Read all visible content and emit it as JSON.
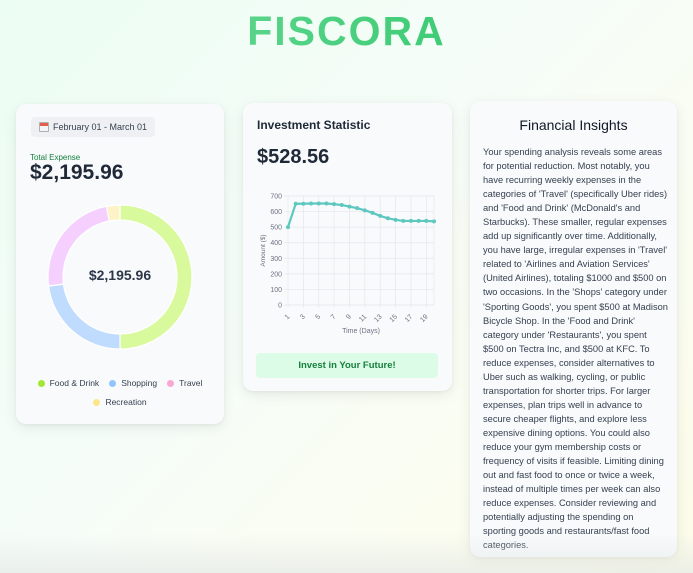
{
  "app": {
    "title": "FISCORA"
  },
  "expense_card": {
    "date_icon": "calendar-icon",
    "date_range": "February 01 - March 01",
    "total_label": "Total Expense",
    "total_value": "$2,195.96",
    "donut_center": "$2,195.96",
    "legend": [
      {
        "label": "Food & Drink",
        "color": "#a3e635",
        "segment_color": "#d9f99d"
      },
      {
        "label": "Shopping",
        "color": "#93c5fd",
        "segment_color": "#bfdbfe"
      },
      {
        "label": "Travel",
        "color": "#f9a8d4",
        "segment_color": "#f5d0fe"
      },
      {
        "label": "Recreation",
        "color": "#fde68a",
        "segment_color": "#fef3c7"
      }
    ]
  },
  "investment_card": {
    "title": "Investment Statistic",
    "value": "$528.56",
    "button_label": "Invest in Your Future!"
  },
  "insights_card": {
    "title": "Financial Insights",
    "body": "Your spending analysis reveals some areas for potential reduction. Most notably, you have recurring weekly expenses in the categories of 'Travel' (specifically Uber rides) and 'Food and Drink' (McDonald's and Starbucks). These smaller, regular expenses add up significantly over time. Additionally, you have large, irregular expenses in 'Travel' related to 'Airlines and Aviation Services' (United Airlines), totaling $1000 and $500 on two occasions. In the 'Shops' category under 'Sporting Goods', you spent $500 at Madison Bicycle Shop. In the 'Food and Drink' category under 'Restaurants', you spent $500 on Tectra Inc, and $500 at KFC. To reduce expenses, consider alternatives to Uber such as walking, cycling, or public transportation for shorter trips. For larger expenses, plan trips well in advance to secure cheaper flights, and explore less expensive dining options. You could also reduce your gym membership costs or frequency of visits if feasible. Limiting dining out and fast food to once or twice a week, instead of multiple times per week can also reduce expenses. Consider reviewing and potentially adjusting the spending on sporting goods and restaurants/fast food categories."
  },
  "chart_data": [
    {
      "type": "pie",
      "title": "Total Expense",
      "center_label": "$2,195.96",
      "categories": [
        "Food & Drink",
        "Shopping",
        "Travel",
        "Recreation"
      ],
      "values": [
        50,
        23,
        24,
        3
      ],
      "value_unit": "approx. percent of total",
      "colors": [
        "#d9f99d",
        "#bfdbfe",
        "#f5d0fe",
        "#fef3c7"
      ],
      "legend_position": "bottom"
    },
    {
      "type": "line",
      "title": "Investment Statistic",
      "xlabel": "Time (Days)",
      "ylabel": "Amount ($)",
      "x": [
        1,
        2,
        3,
        4,
        5,
        6,
        7,
        8,
        9,
        10,
        11,
        12,
        13,
        14,
        15,
        16,
        17,
        18,
        19,
        20
      ],
      "x_tick_labels": [
        "1",
        "3",
        "5",
        "7",
        "9",
        "11",
        "13",
        "15",
        "17",
        "19"
      ],
      "series": [
        {
          "name": "Amount",
          "color": "#5ec8c0",
          "values": [
            500,
            650,
            650,
            652,
            652,
            652,
            648,
            642,
            632,
            622,
            608,
            592,
            572,
            557,
            547,
            540,
            540,
            540,
            540,
            537
          ]
        }
      ],
      "ylim": [
        0,
        700
      ],
      "y_ticks": [
        0,
        100,
        200,
        300,
        400,
        500,
        600,
        700
      ],
      "grid": true
    }
  ]
}
